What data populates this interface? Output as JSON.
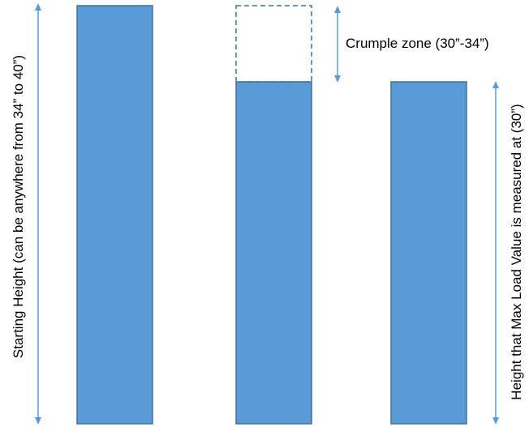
{
  "labels": {
    "starting_height": "Starting Height (can be anywhere from 34” to 40”)",
    "crumple_zone": "Crumple zone (30”-34”)",
    "measured_height": "Height that Max Load Value is measured at (30”)"
  },
  "colors": {
    "bar_fill": "#5b9bd5",
    "bar_stroke": "#41719c",
    "arrow": "#5b9bd5",
    "dashed_outline": "#41719c",
    "text": "#000000"
  }
}
